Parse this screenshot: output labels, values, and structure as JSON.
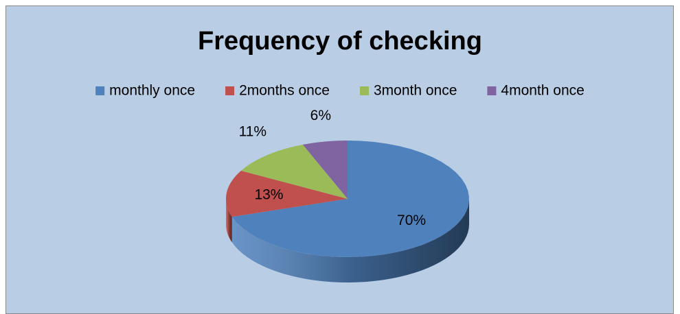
{
  "chart_data": {
    "type": "pie3d",
    "title": "Frequency of checking",
    "categories": [
      "monthly once",
      "2months once",
      "3month once",
      "4month once"
    ],
    "values": [
      70,
      13,
      11,
      6
    ],
    "value_labels": [
      "70%",
      "13%",
      "11%",
      "6%"
    ],
    "colors": [
      "#4f81bd",
      "#c0504d",
      "#9bbb59",
      "#8064a2"
    ],
    "legend": "top"
  }
}
